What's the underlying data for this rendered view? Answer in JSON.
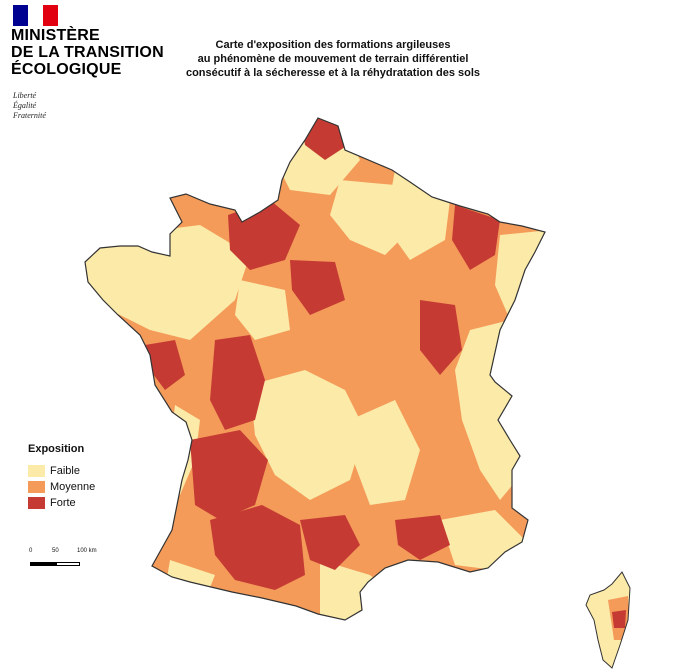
{
  "header": {
    "flag_colors": [
      "#000091",
      "#ffffff",
      "#e1000f"
    ],
    "ministry_lines": [
      "MINISTÈRE",
      "DE LA TRANSITION",
      "ÉCOLOGIQUE"
    ],
    "motto_lines": [
      "Liberté",
      "Égalité",
      "Fraternité"
    ]
  },
  "map": {
    "title_lines": [
      "Carte d'exposition des formations argileuses",
      "au phénomène de mouvement de terrain différentiel",
      "consécutif à la sécheresse et à la réhydratation des sols"
    ],
    "colors": {
      "faible": "#fbeaa8",
      "moyenne": "#f49b5a",
      "forte": "#c53b33",
      "none": "#ffffff",
      "outline": "#333333"
    }
  },
  "legend": {
    "title": "Exposition",
    "items": [
      {
        "label": "Faible",
        "color": "#fbeaa8"
      },
      {
        "label": "Moyenne",
        "color": "#f49b5a"
      },
      {
        "label": "Forte",
        "color": "#c53b33"
      }
    ]
  },
  "scale": {
    "ticks": [
      "0",
      "50",
      "100 km"
    ]
  }
}
